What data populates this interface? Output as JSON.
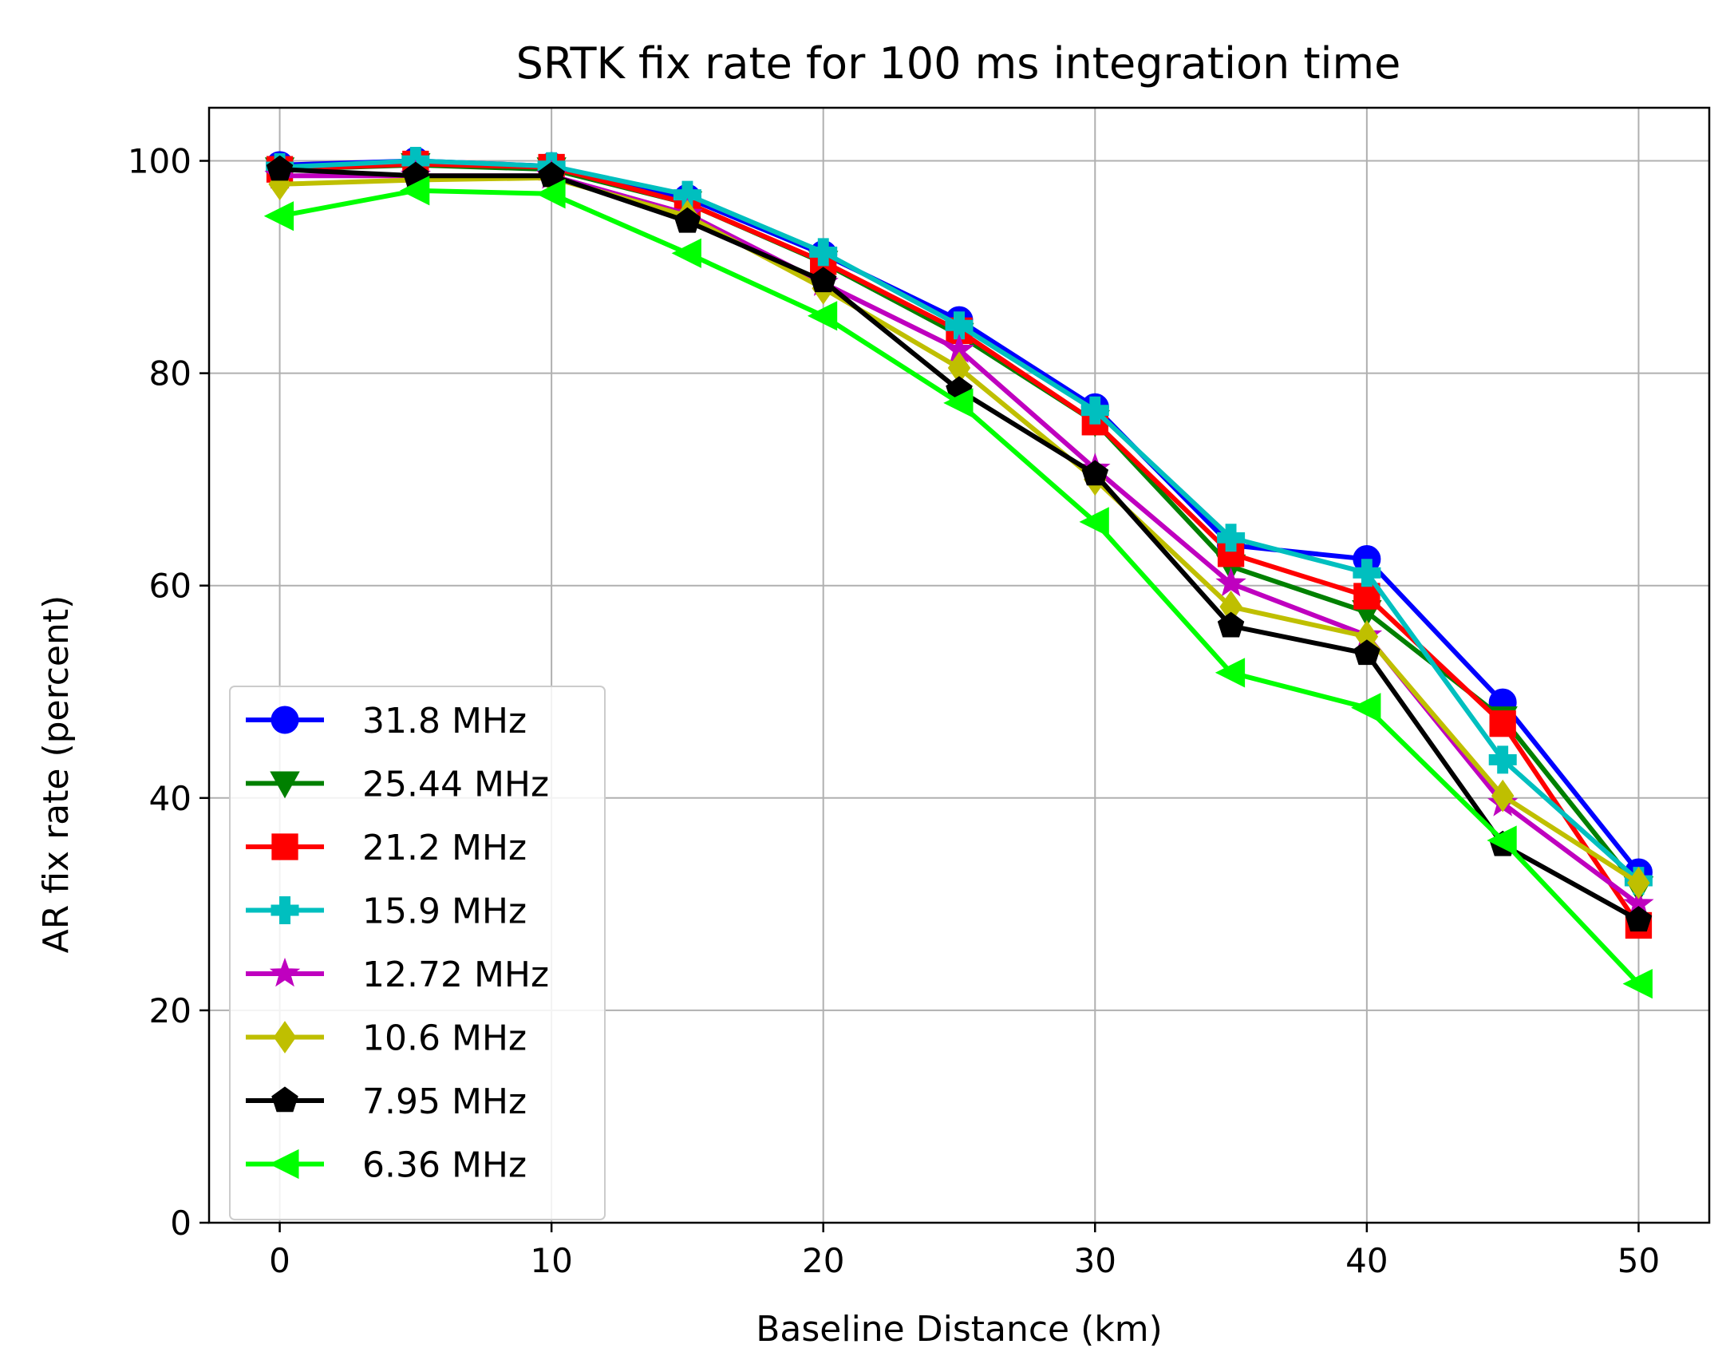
{
  "chart_data": {
    "type": "line",
    "title": "SRTK fix rate for 100 ms integration time",
    "xlabel": "Baseline Distance (km)",
    "ylabel": "AR fix rate (percent)",
    "xlim": [
      -2.6,
      52.6
    ],
    "ylim": [
      0,
      105
    ],
    "xticks": [
      0,
      10,
      20,
      30,
      40,
      50
    ],
    "yticks": [
      0,
      20,
      40,
      60,
      80,
      100
    ],
    "grid": true,
    "legend_position": "lower-left",
    "x": [
      0,
      5,
      10,
      15,
      20,
      25,
      30,
      35,
      40,
      45,
      50
    ],
    "series": [
      {
        "name": "31.8 MHz",
        "color": "#0000ff",
        "marker": "circle",
        "values": [
          99.6,
          100,
          99.5,
          96.5,
          91.2,
          85,
          76.8,
          63.8,
          62.5,
          49,
          33
        ]
      },
      {
        "name": "25.44 MHz",
        "color": "#008000",
        "marker": "triangle-down",
        "values": [
          99.2,
          99.6,
          99.2,
          96,
          90.4,
          83.6,
          75.4,
          61.8,
          57.5,
          47.5,
          31.5
        ]
      },
      {
        "name": "21.2 MHz",
        "color": "#ff0000",
        "marker": "square",
        "values": [
          99.2,
          99.7,
          99.4,
          96,
          90.5,
          84,
          75.4,
          63,
          59,
          47,
          28
        ]
      },
      {
        "name": "15.9 MHz",
        "color": "#00bfbf",
        "marker": "plus",
        "values": [
          99.4,
          100,
          99.5,
          96.8,
          91.4,
          84.5,
          76.5,
          64.5,
          61.2,
          43.6,
          32.2
        ]
      },
      {
        "name": "12.72 MHz",
        "color": "#bf00bf",
        "marker": "star",
        "values": [
          98.6,
          98.6,
          98.6,
          95,
          88.5,
          82.2,
          71,
          60.2,
          55.3,
          39.5,
          30
        ]
      },
      {
        "name": "10.6 MHz",
        "color": "#bfbf00",
        "marker": "diamond",
        "values": [
          97.8,
          98.2,
          98.4,
          94.8,
          88,
          80.5,
          70,
          58,
          55.2,
          40.2,
          32
        ]
      },
      {
        "name": "7.95 MHz",
        "color": "#000000",
        "marker": "pentagon",
        "values": [
          99.2,
          98.6,
          98.6,
          94.3,
          88.7,
          78.4,
          70.5,
          56.2,
          53.6,
          35.6,
          28.5
        ]
      },
      {
        "name": "6.36 MHz",
        "color": "#00ff00",
        "marker": "triangle-left",
        "values": [
          94.8,
          97.2,
          96.9,
          91.3,
          85.4,
          77.2,
          66,
          51.8,
          48.5,
          36,
          22.5
        ]
      }
    ]
  }
}
